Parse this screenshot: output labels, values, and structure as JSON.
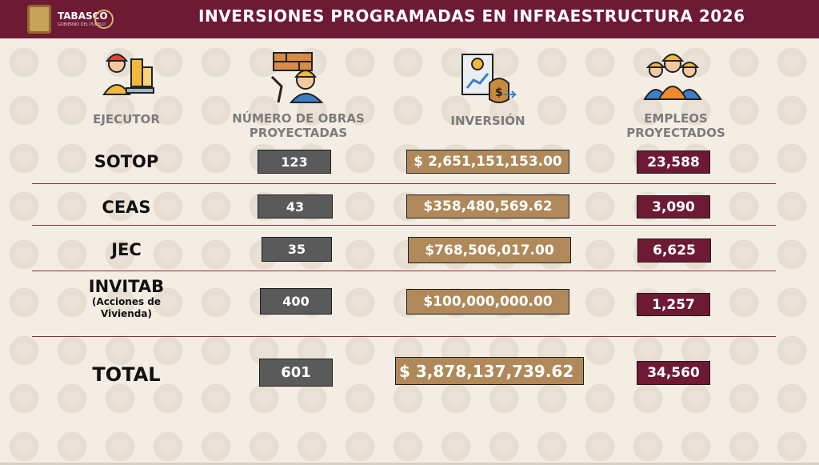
{
  "header": {
    "title": "INVERSIONES PROGRAMADAS  EN INFRAESTRUCTURA 2026",
    "logo_text": "TABASCO",
    "logo_subtext": "GOBIERNO DEL PUEBLO"
  },
  "columns": {
    "ejecutor": "EJECUTOR",
    "obras_line1": "NÚMERO DE OBRAS",
    "obras_line2": "PROYECTADAS",
    "inversion": "INVERSIÓN",
    "empleos_line1": "EMPLEOS",
    "empleos_line2": "PROYECTADOS"
  },
  "rows": [
    {
      "name": "SOTOP",
      "obras": "123",
      "inversion": "$ 2,651,151,153.00",
      "empleos": "23,588"
    },
    {
      "name": "CEAS",
      "obras": "43",
      "inversion": "$358,480,569.62",
      "empleos": "3,090"
    },
    {
      "name": "JEC",
      "obras": "35",
      "inversion": "$768,506,017.00",
      "empleos": "6,625"
    },
    {
      "name": "INVITAB",
      "name_sub1": "(Acciones de",
      "name_sub2": "Vivienda)",
      "obras": "400",
      "inversion": "$100,000,000.00",
      "empleos": "1,257"
    }
  ],
  "total": {
    "label": "TOTAL",
    "obras": "601",
    "inversion": "$ 3,878,137,739.62",
    "empleos": "34,560"
  },
  "colors": {
    "wine": "#6e1a34",
    "gold": "#b0895a",
    "gray": "#5a5a5a",
    "background": "#f3ede4"
  },
  "icons": [
    "engineer-city-icon",
    "bricklayer-icon",
    "investment-report-icon",
    "workers-group-icon"
  ]
}
